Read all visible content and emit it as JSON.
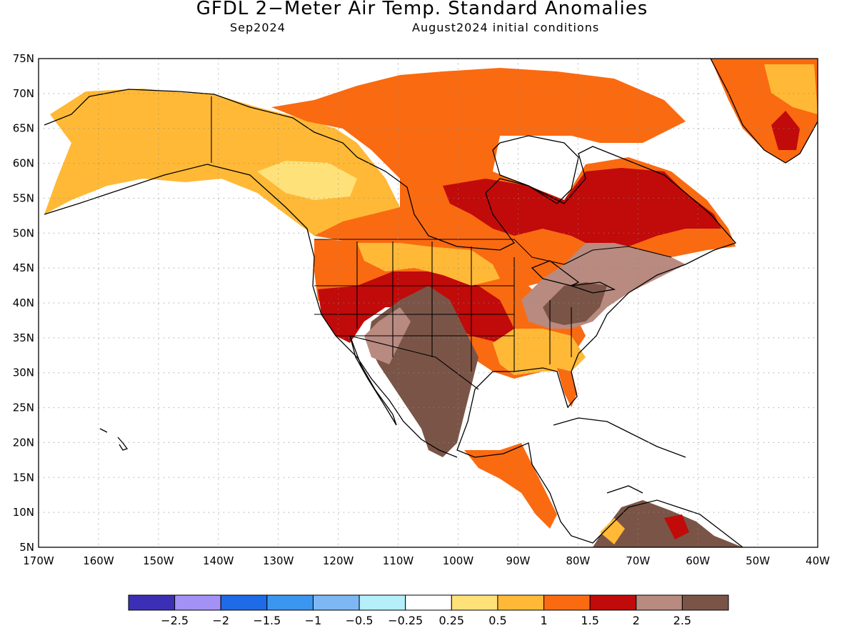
{
  "title": "GFDL 2−Meter Air Temp. Standard Anomalies",
  "valid_month": "Sep2024",
  "initial_conditions": "August2024 initial conditions",
  "map": {
    "lat_labels": [
      "75N",
      "70N",
      "65N",
      "60N",
      "55N",
      "50N",
      "45N",
      "40N",
      "35N",
      "30N",
      "25N",
      "20N",
      "15N",
      "10N",
      "5N"
    ],
    "lon_labels": [
      "170W",
      "160W",
      "150W",
      "140W",
      "130W",
      "120W",
      "110W",
      "100W",
      "90W",
      "80W",
      "70W",
      "60W",
      "50W",
      "40W"
    ],
    "lat_range": [
      5,
      75
    ],
    "lon_range": [
      -170,
      -40
    ],
    "grid_style": "dotted"
  },
  "legend": {
    "colors": [
      "#3c2fb5",
      "#a391f5",
      "#1f6ae6",
      "#3b96f0",
      "#7db8f5",
      "#b4effa",
      "#ffffff",
      "#ffe17a",
      "#ffb936",
      "#fa6a11",
      "#c10a0a",
      "#b88a80",
      "#7a5547"
    ],
    "labels": [
      "−2.5",
      "−2",
      "−1.5",
      "−1",
      "−0.5",
      "−0.25",
      "0.25",
      "0.5",
      "1",
      "1.5",
      "2",
      "2.5"
    ]
  }
}
